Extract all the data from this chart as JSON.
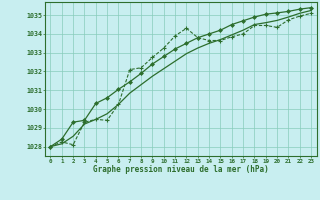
{
  "title": "Graphe pression niveau de la mer (hPa)",
  "background_color": "#c8eef0",
  "grid_color": "#88ccbb",
  "line_color": "#2d6e2d",
  "x_ticks": [
    0,
    1,
    2,
    3,
    4,
    5,
    6,
    7,
    8,
    9,
    10,
    11,
    12,
    13,
    14,
    15,
    16,
    17,
    18,
    19,
    20,
    21,
    22,
    23
  ],
  "ylim": [
    1027.5,
    1035.7
  ],
  "xlim": [
    -0.5,
    23.5
  ],
  "yticks": [
    1028,
    1029,
    1030,
    1031,
    1032,
    1033,
    1034,
    1035
  ],
  "line1_x": [
    0,
    1,
    2,
    3,
    4,
    5,
    6,
    7,
    8,
    9,
    10,
    11,
    12,
    13,
    14,
    15,
    16,
    17,
    18,
    19,
    20,
    21,
    22,
    23
  ],
  "line1_y": [
    1028.0,
    1028.25,
    1028.1,
    1029.3,
    1029.45,
    1029.4,
    1030.25,
    1032.1,
    1032.2,
    1032.75,
    1033.25,
    1033.9,
    1034.3,
    1033.8,
    1033.65,
    1033.65,
    1033.85,
    1034.0,
    1034.45,
    1034.45,
    1034.35,
    1034.75,
    1034.95,
    1035.1
  ],
  "line2_x": [
    0,
    1,
    2,
    3,
    4,
    5,
    6,
    7,
    8,
    9,
    10,
    11,
    12,
    13,
    14,
    15,
    16,
    17,
    18,
    19,
    20,
    21,
    22,
    23
  ],
  "line2_y": [
    1028.0,
    1028.15,
    1028.55,
    1029.2,
    1029.45,
    1029.75,
    1030.25,
    1030.85,
    1031.3,
    1031.75,
    1032.15,
    1032.55,
    1032.95,
    1033.25,
    1033.5,
    1033.7,
    1033.95,
    1034.2,
    1034.5,
    1034.6,
    1034.72,
    1034.9,
    1035.1,
    1035.25
  ],
  "line3_x": [
    0,
    1,
    2,
    3,
    4,
    5,
    6,
    7,
    8,
    9,
    10,
    11,
    12,
    13,
    14,
    15,
    16,
    17,
    18,
    19,
    20,
    21,
    22,
    23
  ],
  "line3_y": [
    1028.0,
    1028.4,
    1029.3,
    1029.4,
    1030.3,
    1030.6,
    1031.05,
    1031.45,
    1031.9,
    1032.4,
    1032.8,
    1033.2,
    1033.5,
    1033.8,
    1034.0,
    1034.2,
    1034.5,
    1034.7,
    1034.9,
    1035.05,
    1035.12,
    1035.2,
    1035.32,
    1035.4
  ]
}
